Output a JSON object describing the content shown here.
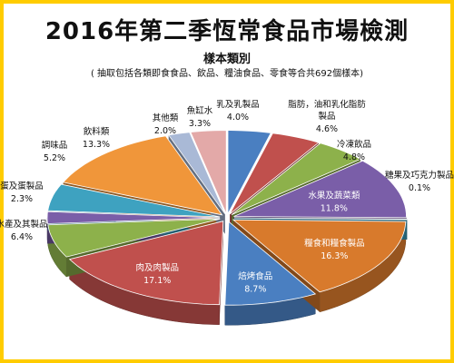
{
  "header": {
    "title": "2016年第二季恆常食品市場檢測",
    "subtitle": "樣本類別",
    "note": "( 抽取包括各類即食食品、飲品、糧油食品、零食等合共692個樣本)"
  },
  "chart_data": {
    "type": "pie",
    "title": "2016年第二季恆常食品市場檢測",
    "subtitle": "樣本類別",
    "slices": [
      {
        "label": "乳及乳製品",
        "pct_label": "4.0%",
        "value": 4.0,
        "color": "#4a7fc1"
      },
      {
        "label": "脂肪，油和乳化脂肪製品",
        "pct_label": "4.6%",
        "value": 4.6,
        "color": "#c0504d"
      },
      {
        "label": "冷凍飲品",
        "pct_label": "4.8%",
        "value": 4.8,
        "color": "#8db14b"
      },
      {
        "label": "水果及蔬菜類",
        "pct_label": "11.8%",
        "value": 11.8,
        "color": "#7a5ea8"
      },
      {
        "label": "糖果及巧克力製品",
        "pct_label": "0.1%",
        "value": 0.1,
        "color": "#3ea2c0"
      },
      {
        "label": "糧食和糧食製品",
        "pct_label": "16.3%",
        "value": 16.3,
        "color": "#d87a2c"
      },
      {
        "label": "焙烤食品",
        "pct_label": "8.7%",
        "value": 8.7,
        "color": "#4a7fc1"
      },
      {
        "label": "肉及肉製品",
        "pct_label": "17.1%",
        "value": 17.1,
        "color": "#c0504d"
      },
      {
        "label": "水產及其製品",
        "pct_label": "6.4%",
        "value": 6.4,
        "color": "#8db14b"
      },
      {
        "label": "蛋及蛋製品",
        "pct_label": "2.3%",
        "value": 2.3,
        "color": "#7a5ea8"
      },
      {
        "label": "調味品",
        "pct_label": "5.2%",
        "value": 5.2,
        "color": "#3ea2c0"
      },
      {
        "label": "飲料類",
        "pct_label": "13.3%",
        "value": 13.3,
        "color": "#f0963a"
      },
      {
        "label": "其他類",
        "pct_label": "2.0%",
        "value": 2.0,
        "color": "#a9b9d6"
      },
      {
        "label": "魚缸水",
        "pct_label": "3.3%",
        "value": 3.3,
        "color": "#e3a9a8"
      }
    ]
  }
}
